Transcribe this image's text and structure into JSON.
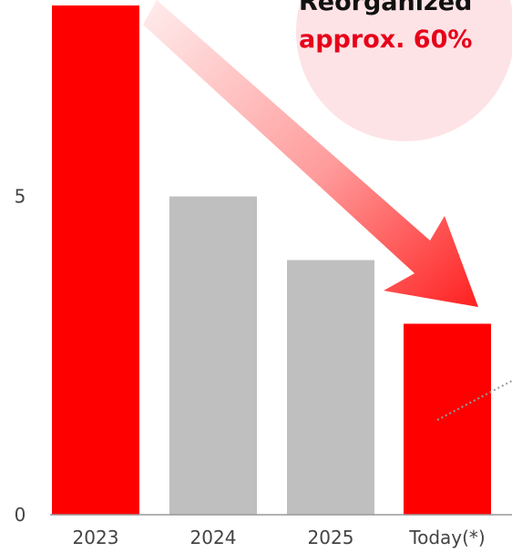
{
  "chart_data": {
    "type": "bar",
    "categories": [
      "2023",
      "2024",
      "2025",
      "Today(*)"
    ],
    "values": [
      8,
      5,
      4,
      3
    ],
    "highlight": [
      true,
      false,
      false,
      true
    ],
    "ylim": [
      0,
      8
    ],
    "yticks": [
      0,
      5
    ],
    "title": "",
    "xlabel": "",
    "ylabel": "",
    "colors": {
      "highlight": "#ff0000",
      "normal": "#bfbfbf",
      "callout_fill": "#fde3e5",
      "callout_text_top": "#111111",
      "callout_text_bottom": "#e8001a",
      "axis": "#999999",
      "arrow": "#ff2020"
    },
    "callout": {
      "line1": "Reorganized",
      "line2": "approx. 60%"
    }
  }
}
